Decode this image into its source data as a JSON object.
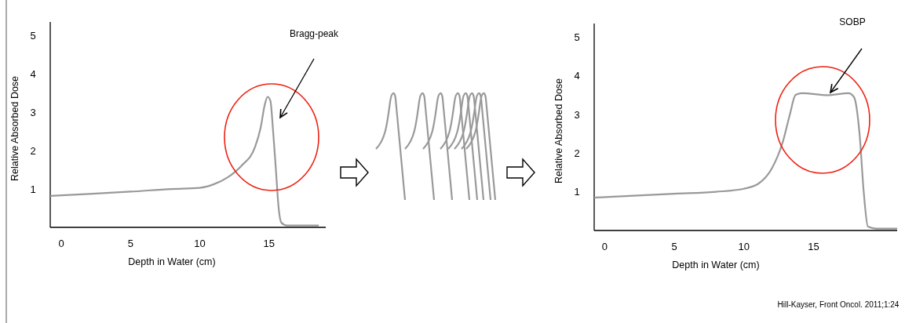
{
  "chart_data": [
    {
      "type": "line",
      "xlabel": "Depth in Water (cm)",
      "ylabel": "Relative Absorbed Dose",
      "x": [
        -0.8,
        2,
        5,
        8,
        10,
        11,
        12,
        13,
        14,
        14.4,
        14.7,
        14.9,
        15.1,
        15.3,
        15.5,
        15.7,
        15.9,
        16.3,
        18.6
      ],
      "series": [
        {
          "color": "#999999",
          "values": [
            0.82,
            0.87,
            0.93,
            1.0,
            1.03,
            1.12,
            1.3,
            1.6,
            2.1,
            2.6,
            3.2,
            3.4,
            3.3,
            2.5,
            1.5,
            0.5,
            0.12,
            0.05,
            0.05
          ]
        }
      ],
      "xlim": [
        -0.8,
        19.1
      ],
      "ylim": [
        0,
        5.35
      ],
      "xticks": [
        0,
        5,
        10,
        15
      ],
      "yticks": [
        1,
        2,
        3,
        4,
        5
      ],
      "grid": false,
      "annotations": [
        "Bragg-peak"
      ]
    },
    {
      "type": "line",
      "xlabel": "Depth in Water (cm)",
      "ylabel": "Relative Absorbed Dose",
      "x": [
        -0.75,
        5,
        8,
        10,
        11,
        12,
        12.8,
        13.3,
        13.7,
        14.2,
        16,
        17.5,
        17.9,
        18.3,
        18.6,
        18.9,
        19.5,
        21
      ],
      "series": [
        {
          "color": "#999999",
          "values": [
            0.85,
            0.95,
            1.0,
            1.08,
            1.2,
            1.6,
            2.3,
            3.0,
            3.5,
            3.55,
            3.5,
            3.55,
            3.45,
            2.5,
            1.0,
            0.1,
            0.05,
            0.05
          ]
        }
      ],
      "xlim": [
        -0.75,
        21
      ],
      "ylim": [
        0,
        5.35
      ],
      "xticks": [
        0,
        5,
        10,
        15
      ],
      "yticks": [
        1,
        2,
        3,
        4,
        5
      ],
      "grid": false,
      "annotations": [
        "SOBP",
        "Hill-Kayser, Front Oncol. 2011;1:24"
      ]
    }
  ]
}
